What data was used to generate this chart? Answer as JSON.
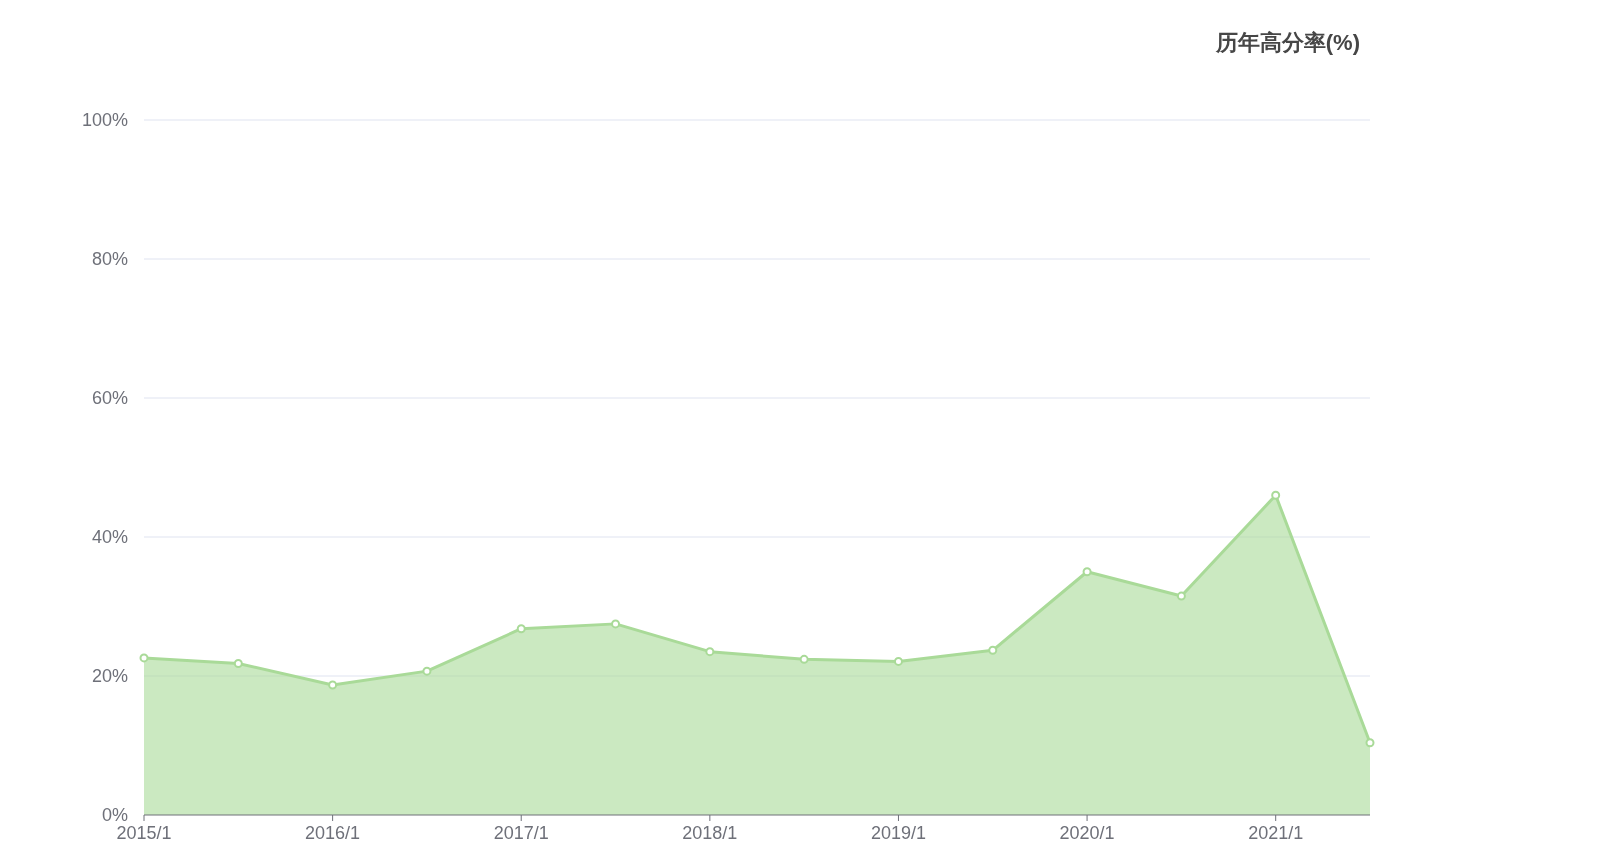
{
  "chart_data": {
    "type": "area",
    "title": "历年高分率(%)",
    "categories": [
      "2015/1",
      null,
      "2016/1",
      null,
      "2017/1",
      null,
      "2018/1",
      null,
      "2019/1",
      null,
      "2020/1",
      null,
      "2021/1",
      null
    ],
    "series": [
      {
        "color": "#a9da98",
        "values": [
          22.6,
          21.8,
          18.7,
          20.7,
          26.8,
          27.5,
          23.5,
          22.4,
          22.1,
          23.7,
          35.0,
          31.5,
          46.0,
          10.4
        ]
      }
    ],
    "ylim": [
      0,
      100
    ],
    "yticks": [
      {
        "value": 0,
        "label": "0%"
      },
      {
        "value": 20,
        "label": "20%"
      },
      {
        "value": 40,
        "label": "40%"
      },
      {
        "value": 60,
        "label": "60%"
      },
      {
        "value": 80,
        "label": "80%"
      },
      {
        "value": 100,
        "label": "100%"
      }
    ],
    "grid": "y",
    "marker": "circle"
  }
}
